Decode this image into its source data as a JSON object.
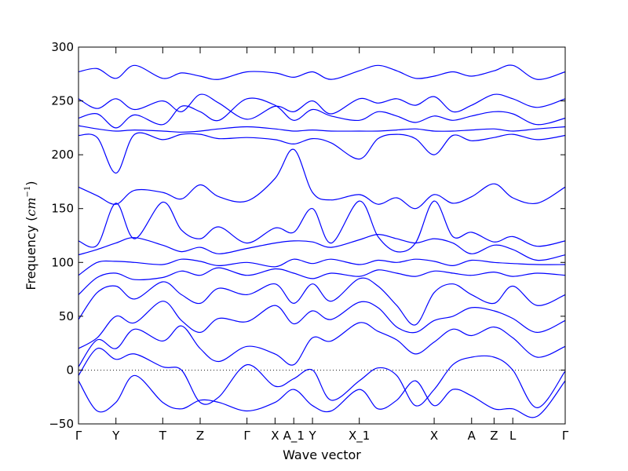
{
  "chart_data": {
    "type": "line",
    "xlabel": "Wave vector",
    "ylabel_text": "Frequency (",
    "ylabel_unit_base": "cm",
    "ylabel_unit_exp": "−1",
    "ylabel_close": ")",
    "ylim": [
      -50,
      300
    ],
    "yticks": [
      -50,
      0,
      50,
      100,
      150,
      200,
      250,
      300
    ],
    "x_range": [
      0,
      26
    ],
    "grid": false,
    "zero_line": true,
    "series_color": "#0000ff",
    "high_symmetry_points": [
      {
        "label": "Γ",
        "x": 0
      },
      {
        "label": "Y",
        "x": 2
      },
      {
        "label": "T",
        "x": 4.5
      },
      {
        "label": "Z",
        "x": 6.5
      },
      {
        "label": "Γ",
        "x": 9
      },
      {
        "label": "X",
        "x": 10.5
      },
      {
        "label": "A_1",
        "x": 11.5
      },
      {
        "label": "Y",
        "x": 12.5
      },
      {
        "label": "X_1",
        "x": 15
      },
      {
        "label": "X",
        "x": 19
      },
      {
        "label": "A",
        "x": 21
      },
      {
        "label": "Z",
        "x": 22.2
      },
      {
        "label": "L",
        "x": 23.2
      },
      {
        "label": "Γ",
        "x": 26
      }
    ],
    "series": [
      {
        "x": [
          0,
          1,
          2,
          3,
          4.5,
          5.5,
          6.5,
          7.5,
          9,
          10.5,
          11.5,
          12.5,
          13.5,
          15,
          16,
          17,
          18,
          19,
          20,
          21,
          22.2,
          23.2,
          24.5,
          26
        ],
        "y": [
          277,
          280,
          271,
          283,
          271,
          276,
          273,
          270,
          277,
          276,
          272,
          277,
          270,
          278,
          283,
          278,
          271,
          273,
          277,
          273,
          278,
          283,
          270,
          277
        ]
      },
      {
        "x": [
          0,
          1,
          2,
          3,
          4.5,
          5.5,
          6.5,
          7.5,
          9,
          10.5,
          11.5,
          12.5,
          13.5,
          15,
          16,
          17,
          18,
          19,
          20,
          21,
          22.2,
          23.2,
          24.5,
          26
        ],
        "y": [
          252,
          243,
          252,
          242,
          250,
          240,
          256,
          248,
          233,
          245,
          240,
          250,
          238,
          252,
          248,
          252,
          246,
          254,
          240,
          246,
          256,
          252,
          244,
          252
        ]
      },
      {
        "x": [
          0,
          1,
          2,
          3,
          4.5,
          5.5,
          6.5,
          7.5,
          9,
          10.5,
          11.5,
          12.5,
          13.5,
          15,
          16,
          17,
          18,
          19,
          20,
          21,
          22.2,
          23.2,
          24.5,
          26
        ],
        "y": [
          234,
          238,
          225,
          237,
          228,
          245,
          240,
          232,
          252,
          246,
          232,
          242,
          236,
          232,
          240,
          236,
          230,
          236,
          232,
          236,
          240,
          238,
          228,
          234
        ]
      },
      {
        "x": [
          0,
          1,
          2,
          3,
          4.5,
          5.5,
          6.5,
          7.5,
          9,
          10.5,
          11.5,
          12.5,
          13.5,
          15,
          16,
          17,
          18,
          19,
          20,
          21,
          22.2,
          23.2,
          24.5,
          26
        ],
        "y": [
          227,
          224,
          222,
          223,
          222,
          221,
          222,
          224,
          226,
          224,
          222,
          223,
          222,
          222,
          222,
          223,
          224,
          222,
          222,
          223,
          224,
          222,
          224,
          226
        ]
      },
      {
        "x": [
          0,
          1,
          2,
          3,
          4.5,
          5.5,
          6.5,
          7.5,
          9,
          10.5,
          11.5,
          12.5,
          13.5,
          15,
          16,
          17,
          18,
          19,
          20,
          21,
          22.2,
          23.2,
          24.5,
          26
        ],
        "y": [
          218,
          216,
          183,
          219,
          214,
          219,
          219,
          215,
          216,
          214,
          210,
          215,
          211,
          196,
          215,
          219,
          215,
          200,
          218,
          213,
          216,
          219,
          214,
          218
        ]
      },
      {
        "x": [
          0,
          1,
          2,
          3,
          4.5,
          5.5,
          6.5,
          7.5,
          9,
          10.5,
          11.5,
          12.5,
          13.5,
          15,
          16,
          17,
          18,
          19,
          20,
          21,
          22.2,
          23.2,
          24.5,
          26
        ],
        "y": [
          170,
          162,
          154,
          167,
          165,
          159,
          172,
          161,
          157,
          178,
          205,
          165,
          158,
          163,
          154,
          160,
          150,
          163,
          155,
          161,
          173,
          160,
          155,
          170
        ]
      },
      {
        "x": [
          0,
          1,
          2,
          3,
          4.5,
          5.5,
          6.5,
          7.5,
          9,
          10.5,
          11.5,
          12.5,
          13.5,
          15,
          16,
          17,
          18,
          19,
          20,
          21,
          22.2,
          23.2,
          24.5,
          26
        ],
        "y": [
          120,
          116,
          155,
          122,
          156,
          130,
          122,
          133,
          118,
          132,
          128,
          150,
          118,
          157,
          124,
          110,
          118,
          157,
          124,
          128,
          119,
          124,
          115,
          120
        ]
      },
      {
        "x": [
          0,
          1,
          2,
          3,
          4.5,
          5.5,
          6.5,
          7.5,
          9,
          10.5,
          11.5,
          12.5,
          13.5,
          15,
          16,
          17,
          18,
          19,
          20,
          21,
          22.2,
          23.2,
          24.5,
          26
        ],
        "y": [
          107,
          112,
          118,
          123,
          116,
          110,
          114,
          108,
          113,
          118,
          120,
          119,
          114,
          121,
          126,
          122,
          118,
          122,
          118,
          108,
          116,
          112,
          102,
          107
        ]
      },
      {
        "x": [
          0,
          1,
          2,
          3,
          4.5,
          5.5,
          6.5,
          7.5,
          9,
          10.5,
          11.5,
          12.5,
          13.5,
          15,
          16,
          17,
          18,
          19,
          20,
          21,
          22.2,
          23.2,
          24.5,
          26
        ],
        "y": [
          88,
          100,
          101,
          100,
          98,
          103,
          101,
          97,
          100,
          96,
          103,
          99,
          103,
          98,
          102,
          100,
          103,
          101,
          97,
          102,
          100,
          99,
          98,
          98
        ]
      },
      {
        "x": [
          0,
          1,
          2,
          3,
          4.5,
          5.5,
          6.5,
          7.5,
          9,
          10.5,
          11.5,
          12.5,
          13.5,
          15,
          16,
          17,
          18,
          19,
          20,
          21,
          22.2,
          23.2,
          24.5,
          26
        ],
        "y": [
          70,
          86,
          90,
          84,
          86,
          92,
          88,
          95,
          88,
          94,
          90,
          85,
          90,
          87,
          93,
          90,
          87,
          92,
          90,
          88,
          91,
          87,
          90,
          88
        ]
      },
      {
        "x": [
          0,
          1,
          2,
          3,
          4.5,
          5.5,
          6.5,
          7.5,
          9,
          10.5,
          11.5,
          12.5,
          13.5,
          15,
          16,
          17,
          18,
          19,
          20,
          21,
          22.2,
          23.2,
          24.5,
          26
        ],
        "y": [
          47,
          72,
          78,
          66,
          82,
          70,
          62,
          76,
          70,
          80,
          62,
          80,
          64,
          85,
          78,
          60,
          42,
          72,
          80,
          70,
          62,
          78,
          60,
          70
        ]
      },
      {
        "x": [
          0,
          1,
          2,
          3,
          4.5,
          5.5,
          6.5,
          7.5,
          9,
          10.5,
          11.5,
          12.5,
          13.5,
          15,
          16,
          17,
          18,
          19,
          20,
          21,
          22.2,
          23.2,
          24.5,
          26
        ],
        "y": [
          20,
          30,
          50,
          44,
          64,
          46,
          35,
          48,
          45,
          60,
          43,
          55,
          47,
          63,
          58,
          40,
          35,
          46,
          50,
          58,
          55,
          48,
          35,
          46
        ]
      },
      {
        "x": [
          0,
          1,
          2,
          3,
          4.5,
          5.5,
          6.5,
          7.5,
          9,
          10.5,
          11.5,
          12.5,
          13.5,
          15,
          16,
          17,
          18,
          19,
          20,
          21,
          22.2,
          23.2,
          24.5,
          26
        ],
        "y": [
          3,
          28,
          20,
          38,
          27,
          41,
          20,
          8,
          22,
          15,
          5,
          30,
          27,
          44,
          36,
          28,
          15,
          26,
          38,
          32,
          40,
          30,
          12,
          22
        ]
      },
      {
        "x": [
          0,
          1,
          2,
          3,
          4.5,
          5.5,
          6.5,
          7.5,
          9,
          10.5,
          11.5,
          12.5,
          13.5,
          15,
          16,
          17,
          18,
          19,
          20,
          21,
          22.2,
          23.2,
          24.5,
          26
        ],
        "y": [
          -5,
          20,
          10,
          15,
          3,
          0,
          -30,
          -25,
          5,
          -15,
          -8,
          0,
          -28,
          -10,
          2,
          -5,
          -33,
          -18,
          5,
          12,
          12,
          0,
          -35,
          -1
        ]
      },
      {
        "x": [
          0,
          1,
          2,
          3,
          4.5,
          5.5,
          6.5,
          7.5,
          9,
          10.5,
          11.5,
          12.5,
          13.5,
          15,
          16,
          17,
          18,
          19,
          20,
          21,
          22.2,
          23.2,
          24.5,
          26
        ],
        "y": [
          -10,
          -38,
          -30,
          -5,
          -30,
          -36,
          -28,
          -30,
          -38,
          -30,
          -18,
          -33,
          -38,
          -18,
          -36,
          -28,
          -10,
          -33,
          -18,
          -24,
          -36,
          -36,
          -43,
          -10
        ]
      }
    ]
  }
}
